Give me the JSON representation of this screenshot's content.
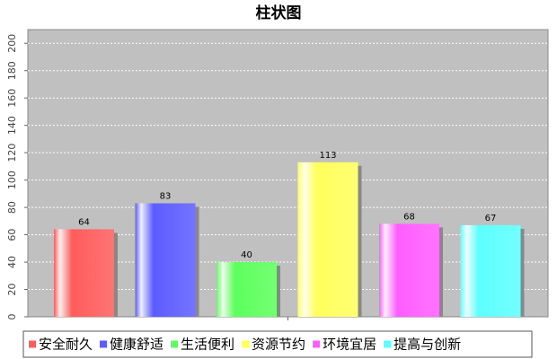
{
  "chart_data": {
    "type": "bar",
    "title": "柱状图",
    "xlabel": "",
    "ylabel": "",
    "categories": [
      "安全耐久",
      "健康舒适",
      "生活便利",
      "资源节约",
      "环境宜居",
      "提高与创新"
    ],
    "values": [
      64,
      83,
      40,
      113,
      68,
      67
    ],
    "colors": [
      "#ff5c5c",
      "#5c5cff",
      "#5cff5c",
      "#ffff5c",
      "#ff5cff",
      "#5cffff"
    ],
    "ylim": [
      0,
      210
    ],
    "yticks": [
      0,
      20,
      40,
      60,
      80,
      100,
      120,
      140,
      160,
      180,
      200
    ],
    "grid": true,
    "plot_background": "#c0c0c0",
    "legend_position": "bottom"
  }
}
